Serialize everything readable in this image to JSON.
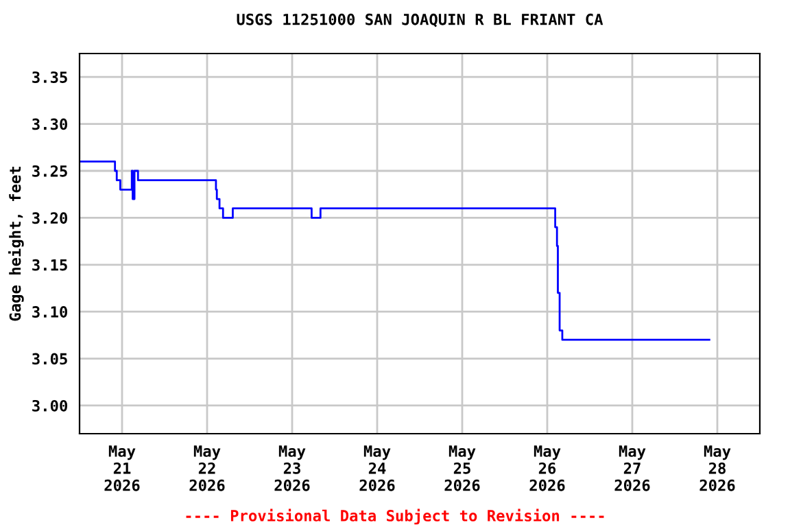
{
  "chart_data": {
    "type": "step",
    "title": "USGS 11251000 SAN JOAQUIN R BL FRIANT CA",
    "ylabel": "Gage height, feet",
    "x": [
      "2026-05-20T12:00",
      "2026-05-20T22:00",
      "2026-05-20T22:30",
      "2026-05-20T23:30",
      "2026-05-21T02:45",
      "2026-05-21T03:00",
      "2026-05-21T03:30",
      "2026-05-21T04:30",
      "2026-05-22T02:30",
      "2026-05-22T02:45",
      "2026-05-22T03:30",
      "2026-05-22T04:30",
      "2026-05-22T07:15",
      "2026-05-23T05:30",
      "2026-05-23T08:00",
      "2026-05-26T02:15",
      "2026-05-26T02:45",
      "2026-05-26T03:00",
      "2026-05-26T03:30",
      "2026-05-26T04:15",
      "2026-05-27T21:45"
    ],
    "series": [
      {
        "color": "#0000ff",
        "values": [
          3.26,
          3.25,
          3.24,
          3.23,
          3.25,
          3.22,
          3.25,
          3.24,
          3.23,
          3.22,
          3.21,
          3.2,
          3.21,
          3.2,
          3.21,
          3.19,
          3.17,
          3.12,
          3.08,
          3.07,
          3.07
        ]
      }
    ],
    "xlim": [
      "2026-05-20T12:00",
      "2026-05-28T12:00"
    ],
    "xticks": [
      {
        "value": "2026-05-21",
        "label": "May\n21\n2026"
      },
      {
        "value": "2026-05-22",
        "label": "May\n22\n2026"
      },
      {
        "value": "2026-05-23",
        "label": "May\n23\n2026"
      },
      {
        "value": "2026-05-24",
        "label": "May\n24\n2026"
      },
      {
        "value": "2026-05-25",
        "label": "May\n25\n2026"
      },
      {
        "value": "2026-05-26",
        "label": "May\n26\n2026"
      },
      {
        "value": "2026-05-27",
        "label": "May\n27\n2026"
      },
      {
        "value": "2026-05-28",
        "label": "May\n28\n2026"
      }
    ],
    "ylim": [
      2.97,
      3.375
    ],
    "yticks": [
      {
        "value": 3.0,
        "label": "3.00"
      },
      {
        "value": 3.05,
        "label": "3.05"
      },
      {
        "value": 3.1,
        "label": "3.10"
      },
      {
        "value": 3.15,
        "label": "3.15"
      },
      {
        "value": 3.2,
        "label": "3.20"
      },
      {
        "value": 3.25,
        "label": "3.25"
      },
      {
        "value": 3.3,
        "label": "3.30"
      },
      {
        "value": 3.35,
        "label": "3.35"
      }
    ],
    "grid": true,
    "annotations": [
      "---- Provisional Data Subject to Revision ----"
    ]
  }
}
